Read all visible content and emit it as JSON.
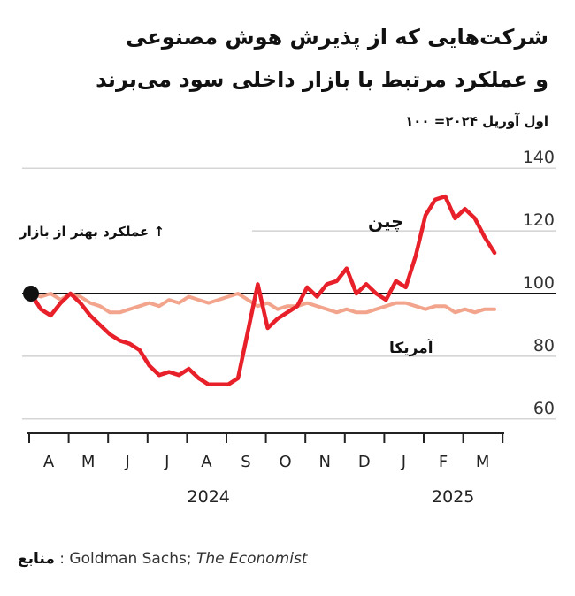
{
  "title_lines": [
    "شرکت‌هایی که از پذیرش هوش مصنوعی",
    "و عملکرد مرتبط با بازار داخلی سود می‌برند"
  ],
  "subtitle": "اول آوریل ۲۰۲۴= ۱۰۰",
  "annotation_better": "↑ عملکرد بهتر از بازار",
  "source": {
    "label": "منابع",
    "text": ": Goldman Sachs; ",
    "italic": "The Economist"
  },
  "colors": {
    "china": "#e8202a",
    "us": "#f2a48c",
    "axis": "#222222",
    "grid": "#c8c8c8",
    "baseline": "#111111"
  },
  "chart_data": {
    "type": "line",
    "title": "شرکت‌هایی که از پذیرش هوش مصنوعی و عملکرد مرتبط با بازار داخلی سود می‌برند",
    "subtitle": "اول آوریل ۲۰۲۴= ۱۰۰",
    "xlabel": "",
    "ylabel": "",
    "x_tick_labels": [
      "A",
      "M",
      "J",
      "J",
      "A",
      "S",
      "O",
      "N",
      "D",
      "J",
      "F",
      "M"
    ],
    "year_labels": [
      "2024",
      "2025"
    ],
    "y_ticks": [
      60,
      80,
      100,
      120,
      140
    ],
    "ylim": [
      56,
      144
    ],
    "xlim": [
      0,
      12.5
    ],
    "baseline": 100,
    "grid": true,
    "series": [
      {
        "name": "چین",
        "x": [
          0,
          0.25,
          0.5,
          0.75,
          1.0,
          1.25,
          1.5,
          1.75,
          2.0,
          2.25,
          2.5,
          2.75,
          3.0,
          3.25,
          3.5,
          3.75,
          4.0,
          4.25,
          4.5,
          4.75,
          5.0,
          5.25,
          5.5,
          5.75,
          6.0,
          6.25,
          6.5,
          6.75,
          7.0,
          7.25,
          7.5,
          7.75,
          8.0,
          8.25,
          8.5,
          8.75,
          9.0,
          9.25,
          9.5,
          9.75,
          10.0,
          10.25,
          10.5,
          10.75,
          11.0,
          11.25,
          11.5,
          11.75
        ],
        "values": [
          100,
          95,
          93,
          97,
          100,
          97,
          93,
          90,
          87,
          85,
          84,
          82,
          77,
          74,
          75,
          74,
          76,
          73,
          71,
          71,
          71,
          73,
          88,
          103,
          89,
          92,
          94,
          96,
          102,
          99,
          103,
          104,
          108,
          100,
          103,
          100,
          98,
          104,
          102,
          112,
          125,
          130,
          131,
          124,
          127,
          124,
          118,
          113
        ]
      },
      {
        "name": "آمریکا",
        "x": [
          0,
          0.25,
          0.5,
          0.75,
          1.0,
          1.25,
          1.5,
          1.75,
          2.0,
          2.25,
          2.5,
          2.75,
          3.0,
          3.25,
          3.5,
          3.75,
          4.0,
          4.25,
          4.5,
          4.75,
          5.0,
          5.25,
          5.5,
          5.75,
          6.0,
          6.25,
          6.5,
          6.75,
          7.0,
          7.25,
          7.5,
          7.75,
          8.0,
          8.25,
          8.5,
          8.75,
          9.0,
          9.25,
          9.5,
          9.75,
          10.0,
          10.25,
          10.5,
          10.75,
          11.0,
          11.25,
          11.5,
          11.75
        ],
        "values": [
          100,
          99,
          100,
          98,
          100,
          99,
          97,
          96,
          94,
          94,
          95,
          96,
          97,
          96,
          98,
          97,
          99,
          98,
          97,
          98,
          99,
          100,
          98,
          96,
          97,
          95,
          96,
          96,
          97,
          96,
          95,
          94,
          95,
          94,
          94,
          95,
          96,
          97,
          97,
          96,
          95,
          96,
          96,
          94,
          95,
          94,
          95,
          95
        ]
      }
    ]
  }
}
